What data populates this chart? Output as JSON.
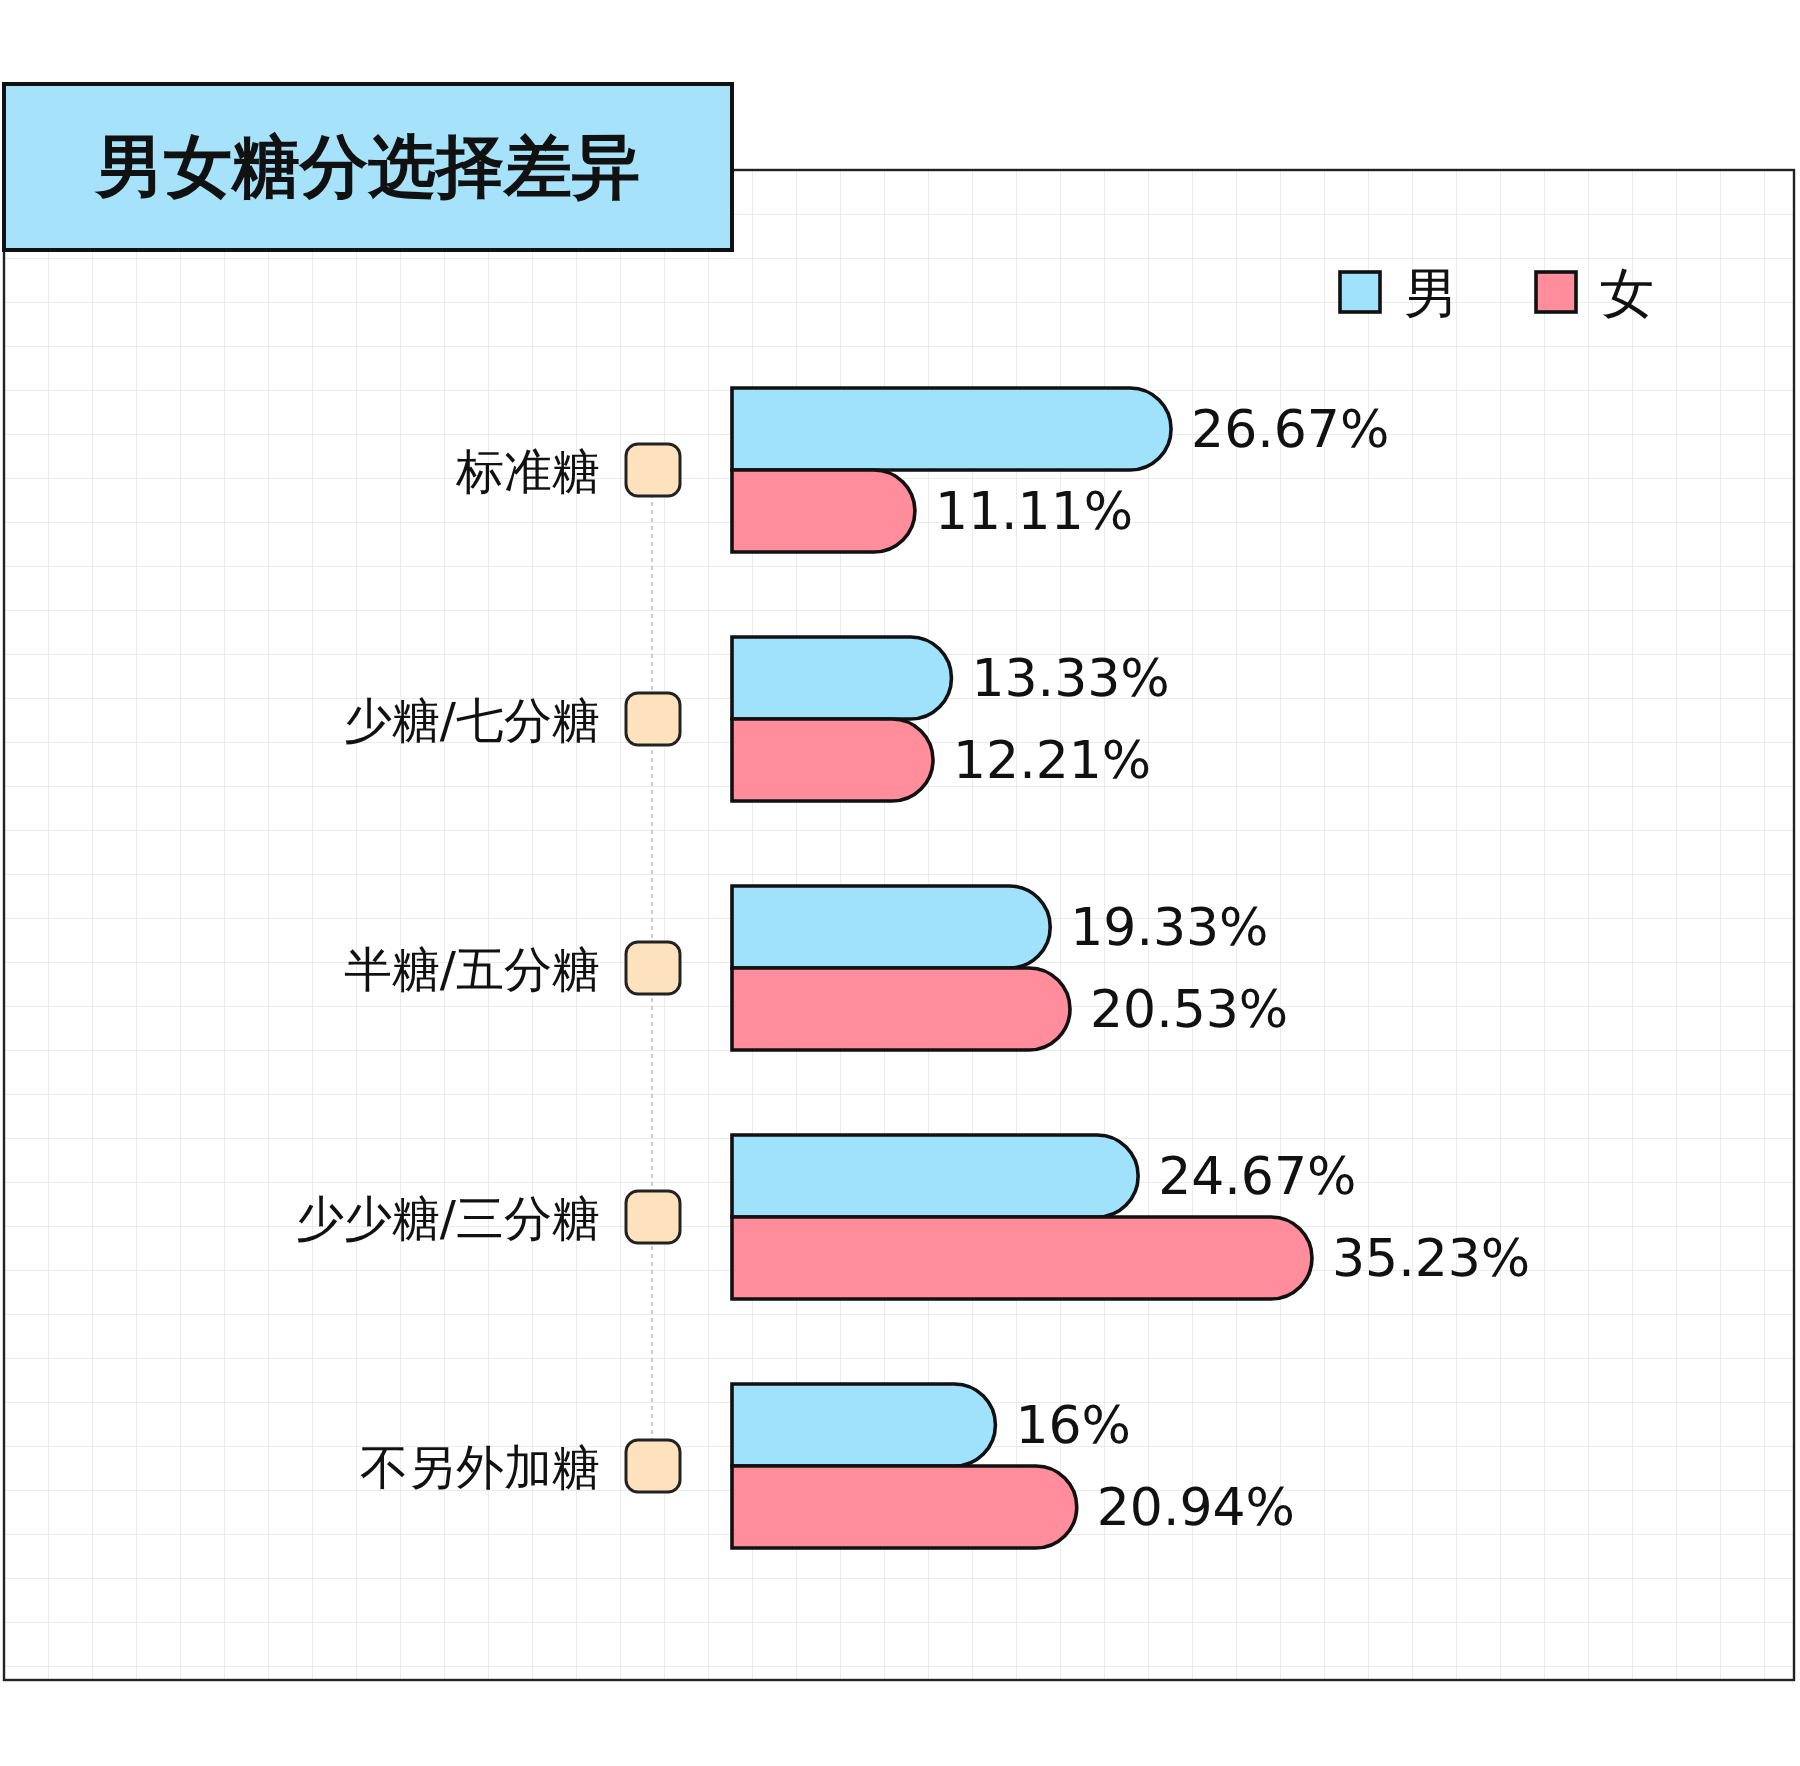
{
  "chart_data": {
    "type": "bar",
    "orientation": "horizontal",
    "title": "男女糖分选择差异",
    "categories": [
      "标准糖",
      "少糖/七分糖",
      "半糖/五分糖",
      "少少糖/三分糖",
      "不另外加糖"
    ],
    "series": [
      {
        "name": "男",
        "color": "#a0e2fb",
        "values": [
          26.67,
          13.33,
          19.33,
          24.67,
          16
        ],
        "value_labels": [
          "26.67%",
          "13.33%",
          "19.33%",
          "24.67%",
          "16%"
        ]
      },
      {
        "name": "女",
        "color": "#ff8d9c",
        "values": [
          11.11,
          12.21,
          20.53,
          35.23,
          20.94
        ],
        "value_labels": [
          "11.11%",
          "12.21%",
          "20.53%",
          "35.23%",
          "20.94%"
        ]
      }
    ],
    "legend": "top right"
  }
}
